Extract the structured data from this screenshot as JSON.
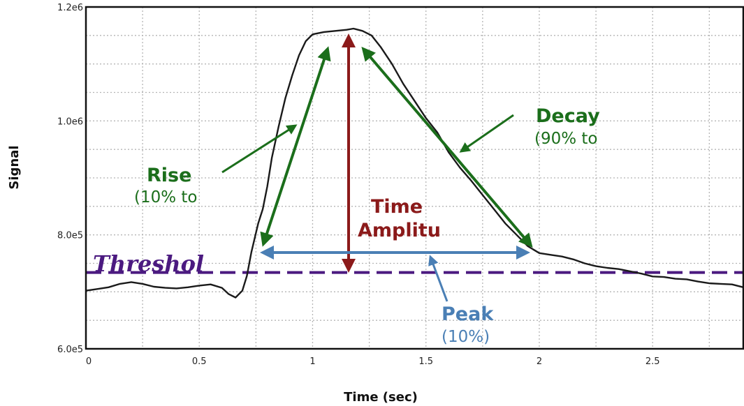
{
  "chart_data": {
    "type": "line",
    "xlabel": "Time (sec)",
    "ylabel": "Signal",
    "xlim": [
      0,
      2.9
    ],
    "ylim": [
      600000,
      1200000
    ],
    "x_ticks": [
      0,
      0.5,
      1,
      1.5,
      2,
      2.5
    ],
    "x_tick_labels": [
      "0",
      "0.5",
      "1",
      "1.5",
      "2",
      "2.5"
    ],
    "y_ticks": [
      600000,
      800000,
      1000000,
      1200000
    ],
    "y_tick_labels": [
      "6.0e5",
      "8.0e5",
      "1.0e6",
      "1.2e6"
    ],
    "grid": true,
    "threshold": 734000,
    "series": [
      {
        "color": "#1a1a1a",
        "points": [
          [
            0,
            702000
          ],
          [
            0.05,
            705000
          ],
          [
            0.1,
            708000
          ],
          [
            0.15,
            714000
          ],
          [
            0.2,
            717000
          ],
          [
            0.25,
            714000
          ],
          [
            0.3,
            709000
          ],
          [
            0.35,
            707000
          ],
          [
            0.4,
            706000
          ],
          [
            0.45,
            708000
          ],
          [
            0.5,
            711000
          ],
          [
            0.55,
            713000
          ],
          [
            0.6,
            707000
          ],
          [
            0.63,
            696000
          ],
          [
            0.66,
            690000
          ],
          [
            0.69,
            702000
          ],
          [
            0.71,
            728000
          ],
          [
            0.73,
            770000
          ],
          [
            0.76,
            820000
          ],
          [
            0.78,
            845000
          ],
          [
            0.8,
            885000
          ],
          [
            0.82,
            935000
          ],
          [
            0.85,
            990000
          ],
          [
            0.88,
            1040000
          ],
          [
            0.91,
            1080000
          ],
          [
            0.94,
            1115000
          ],
          [
            0.97,
            1140000
          ],
          [
            1.0,
            1152000
          ],
          [
            1.05,
            1156000
          ],
          [
            1.1,
            1158000
          ],
          [
            1.15,
            1160000
          ],
          [
            1.18,
            1162000
          ],
          [
            1.22,
            1158000
          ],
          [
            1.26,
            1150000
          ],
          [
            1.3,
            1130000
          ],
          [
            1.35,
            1100000
          ],
          [
            1.4,
            1065000
          ],
          [
            1.45,
            1035000
          ],
          [
            1.5,
            1005000
          ],
          [
            1.55,
            980000
          ],
          [
            1.6,
            945000
          ],
          [
            1.65,
            918000
          ],
          [
            1.7,
            895000
          ],
          [
            1.75,
            870000
          ],
          [
            1.8,
            845000
          ],
          [
            1.85,
            820000
          ],
          [
            1.9,
            800000
          ],
          [
            1.95,
            780000
          ],
          [
            2.0,
            768000
          ],
          [
            2.05,
            765000
          ],
          [
            2.1,
            762000
          ],
          [
            2.15,
            757000
          ],
          [
            2.2,
            750000
          ],
          [
            2.25,
            745000
          ],
          [
            2.3,
            742000
          ],
          [
            2.35,
            740000
          ],
          [
            2.4,
            736000
          ],
          [
            2.45,
            732000
          ],
          [
            2.5,
            727000
          ],
          [
            2.55,
            726000
          ],
          [
            2.6,
            723000
          ],
          [
            2.65,
            722000
          ],
          [
            2.7,
            718000
          ],
          [
            2.75,
            715000
          ],
          [
            2.8,
            714000
          ],
          [
            2.85,
            713000
          ],
          [
            2.9,
            708000
          ]
        ]
      }
    ],
    "annotations": [
      {
        "title": "Rise",
        "subtitle": "(10% to",
        "color": "#1b6e1b"
      },
      {
        "title": "Decay",
        "subtitle": "(90% to",
        "color": "#1b6e1b"
      },
      {
        "title": "Time",
        "subtitle": "Amplitu",
        "color": "#8b1a1a"
      },
      {
        "title": "Peak",
        "subtitle": "(10%)",
        "color": "#4a7fb5"
      },
      {
        "title": "Threshol",
        "color": "#4b1a80"
      }
    ]
  }
}
